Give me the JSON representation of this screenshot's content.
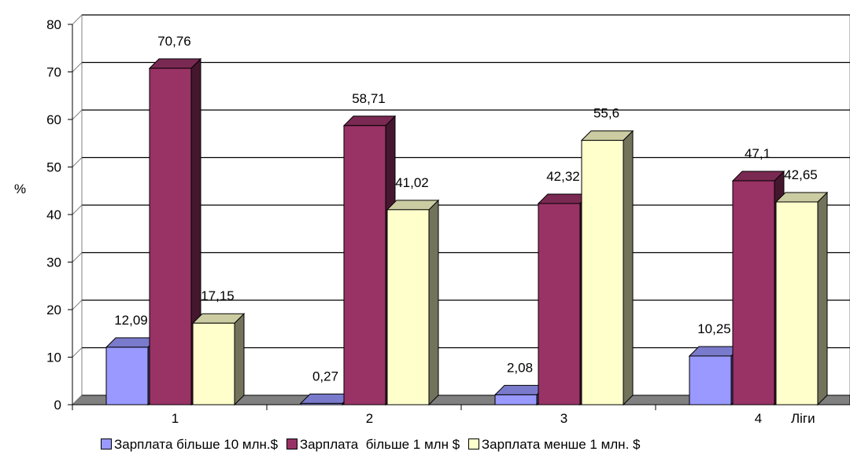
{
  "chart_data": {
    "type": "bar",
    "title": "",
    "xlabel": "Ліги",
    "ylabel": "%",
    "ylim": [
      0,
      80
    ],
    "y_ticks": [
      "0",
      "10",
      "20",
      "30",
      "40",
      "50",
      "60",
      "70",
      "80"
    ],
    "categories": [
      "1",
      "2",
      "3",
      "4"
    ],
    "grid": true,
    "three_d": true,
    "legend_position": "bottom",
    "series": [
      {
        "name": "Зарплата більше 10 млн.$",
        "values": [
          12.09,
          0.27,
          2.08,
          10.25
        ],
        "labels": [
          "12,09",
          "0,27",
          "2,08",
          "10,25"
        ],
        "color": "#9999ff"
      },
      {
        "name": "Зарплата  більше 1 млн $",
        "values": [
          70.76,
          58.71,
          42.32,
          47.1
        ],
        "labels": [
          "70,76",
          "58,71",
          "42,32",
          "47,1"
        ],
        "color": "#993366"
      },
      {
        "name": "Зарплата менше 1 млн. $",
        "values": [
          17.15,
          41.02,
          55.6,
          42.65
        ],
        "labels": [
          "17,15",
          "41,02",
          "55,6",
          "42,65"
        ],
        "color": "#ffffcc"
      }
    ]
  }
}
